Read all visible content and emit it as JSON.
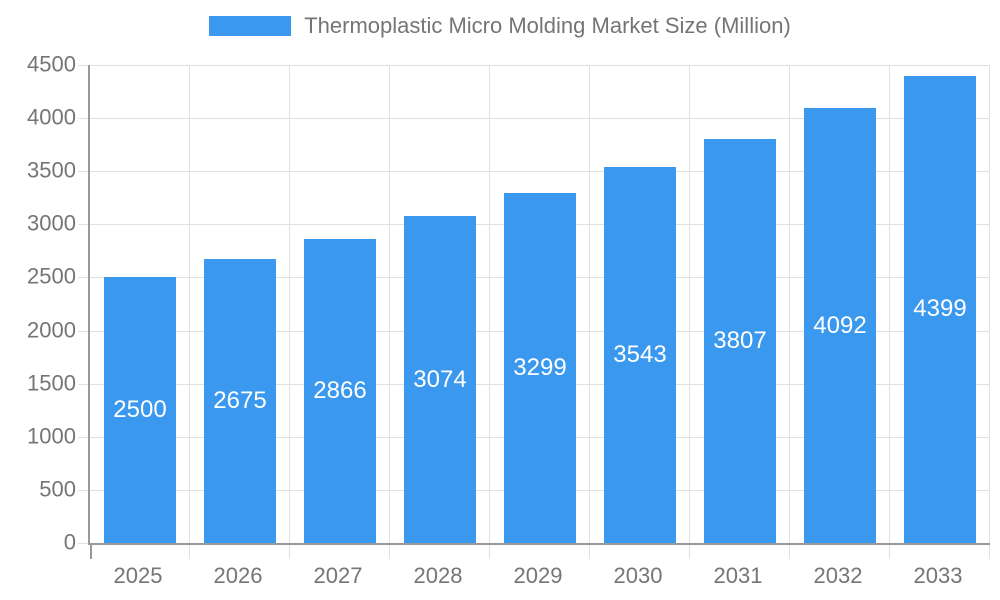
{
  "legend": {
    "label": "Thermoplastic Micro Molding Market Size (Million)"
  },
  "chart_data": {
    "type": "bar",
    "title": "Thermoplastic Micro Molding Market Size (Million)",
    "categories": [
      "2025",
      "2026",
      "2027",
      "2028",
      "2029",
      "2030",
      "2031",
      "2032",
      "2033"
    ],
    "values": [
      2500,
      2675,
      2866,
      3074,
      3299,
      3543,
      3807,
      4092,
      4399
    ],
    "xlabel": "",
    "ylabel": "",
    "ylim": [
      0,
      4500
    ],
    "ytick_interval": 500,
    "yticks": [
      0,
      500,
      1000,
      1500,
      2000,
      2500,
      3000,
      3500,
      4000,
      4500
    ],
    "grid": true,
    "legend_position": "top",
    "bar_label_position": "center-inside"
  },
  "colors": {
    "bar": "#3A99EE",
    "grid": "#E0E0E0",
    "axis": "#999999",
    "text": "#757575",
    "bar_label": "#FFFFFF",
    "background": "#FFFFFF"
  }
}
